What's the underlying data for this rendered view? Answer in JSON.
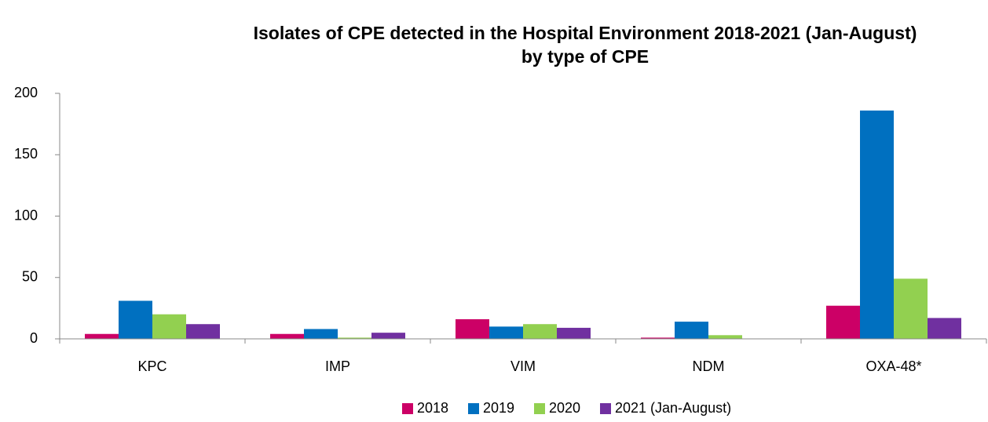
{
  "chart_data": {
    "type": "bar",
    "title": [
      "Isolates of CPE detected in the Hospital Environment 2018-2021 (Jan-August)",
      "by type of CPE"
    ],
    "categories": [
      "KPC",
      "IMP",
      "VIM",
      "NDM",
      "OXA-48*"
    ],
    "series": [
      {
        "name": "2018",
        "color": "#cc0066",
        "values": [
          4,
          4,
          16,
          1,
          27
        ]
      },
      {
        "name": "2019",
        "color": "#0070c0",
        "values": [
          31,
          8,
          10,
          14,
          186
        ]
      },
      {
        "name": "2020",
        "color": "#92d050",
        "values": [
          20,
          1,
          12,
          3,
          49
        ]
      },
      {
        "name": "2021 (Jan-August)",
        "color": "#7030a0",
        "values": [
          12,
          5,
          9,
          0,
          17
        ]
      }
    ],
    "ylim": [
      0,
      200
    ],
    "yticks": [
      0,
      50,
      100,
      150,
      200
    ],
    "grid": false,
    "legend": "bottom"
  }
}
